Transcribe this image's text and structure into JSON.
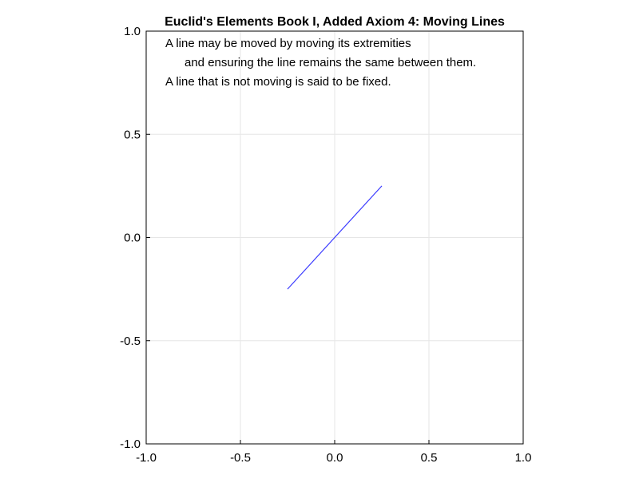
{
  "chart_data": {
    "type": "line",
    "title": "Euclid's Elements Book I, Added Axiom 4: Moving Lines",
    "xlabel": "",
    "ylabel": "",
    "xlim": [
      -1.0,
      1.0
    ],
    "ylim": [
      -1.0,
      1.0
    ],
    "x_ticks": [
      -1.0,
      -0.5,
      0.0,
      0.5,
      1.0
    ],
    "y_ticks": [
      -1.0,
      -0.5,
      0.0,
      0.5,
      1.0
    ],
    "x_tick_labels": [
      "-1.0",
      "-0.5",
      "0.0",
      "0.5",
      "1.0"
    ],
    "y_tick_labels": [
      "-1.0",
      "-0.5",
      "0.0",
      "0.5",
      "1.0"
    ],
    "grid": true,
    "series": [
      {
        "color": "#3b3bff",
        "x": [
          -0.25,
          0.25
        ],
        "y": [
          -0.25,
          0.25
        ]
      }
    ],
    "annotations": [
      "A line may be moved by moving its extremities",
      "and ensuring the line remains the same between them.",
      "A line that is not moving is said to be fixed."
    ]
  }
}
